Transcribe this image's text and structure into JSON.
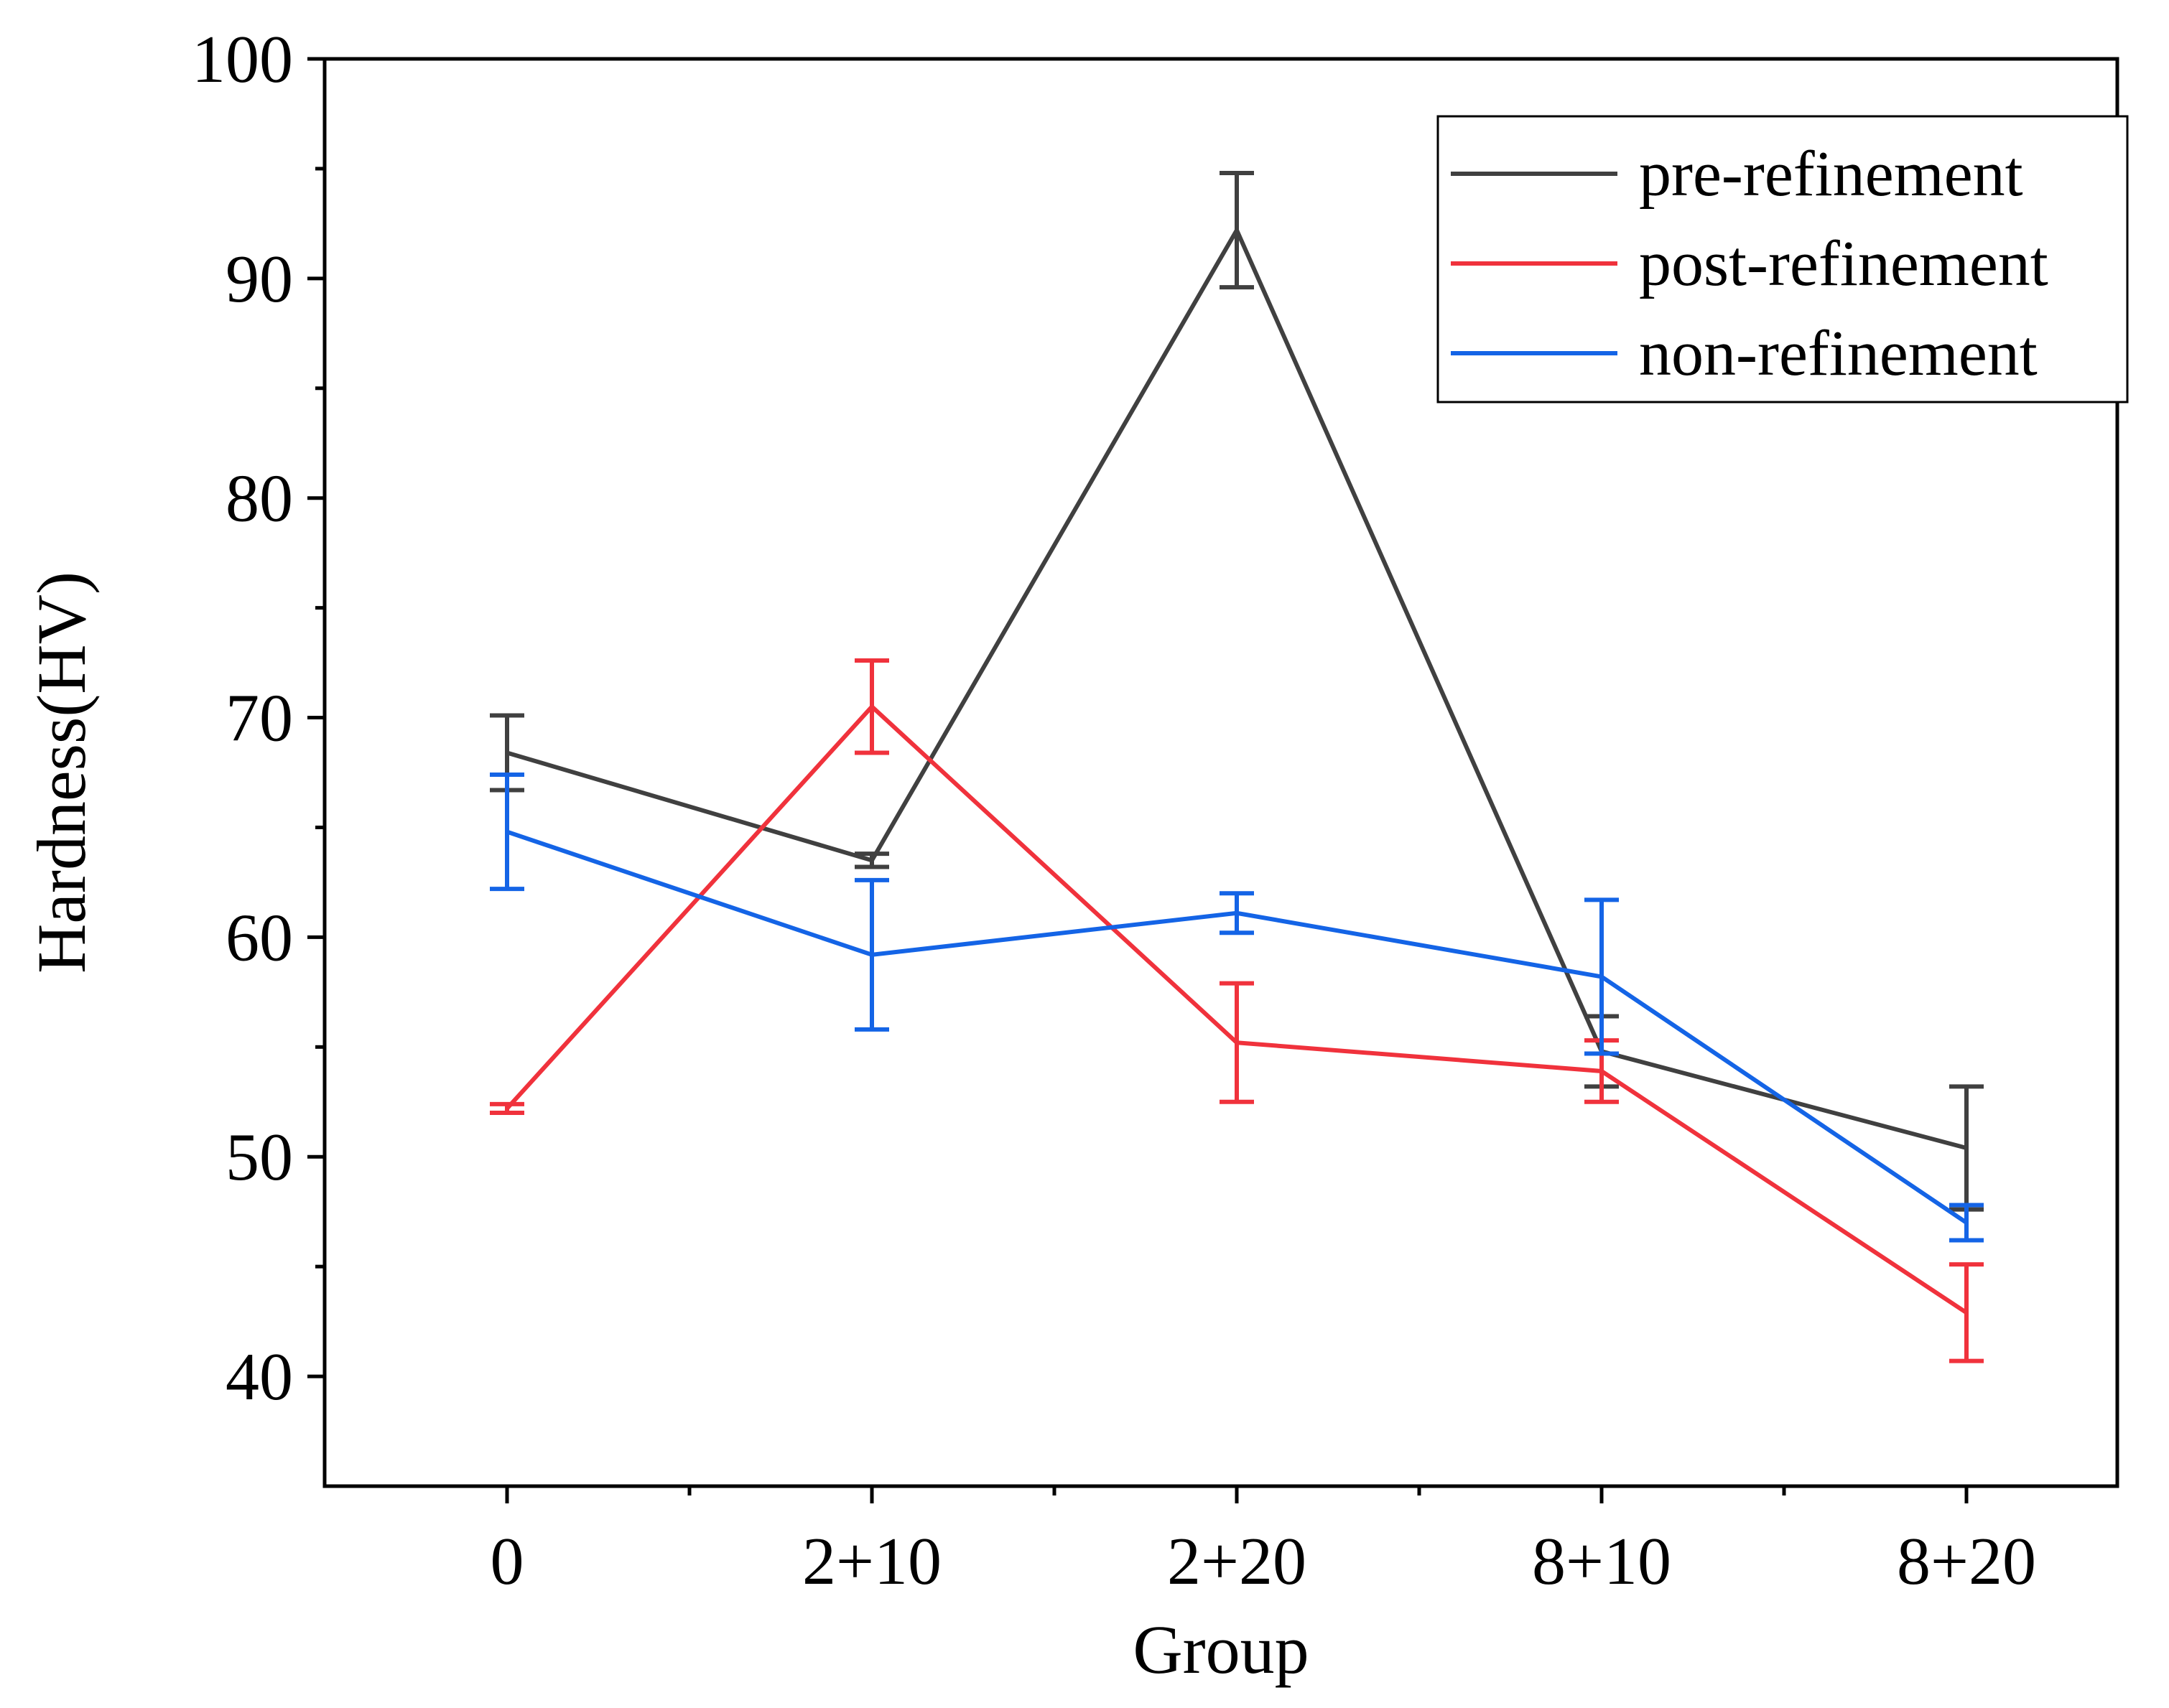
{
  "chart_data": {
    "type": "line",
    "title": "",
    "xlabel": "Group",
    "ylabel": "Hardness(HV)",
    "categories": [
      "0",
      "2+10",
      "2+20",
      "8+10",
      "8+20"
    ],
    "ylim": [
      35,
      100
    ],
    "yticks": [
      40,
      50,
      60,
      70,
      80,
      90,
      100
    ],
    "legend_position": "top-right",
    "series": [
      {
        "name": "pre-refinement",
        "color": "#404040",
        "values": [
          68.4,
          63.5,
          92.2,
          54.8,
          50.4
        ],
        "errors": [
          1.7,
          0.3,
          2.6,
          1.6,
          2.8
        ]
      },
      {
        "name": "post-refinement",
        "color": "#f0323c",
        "values": [
          52.2,
          70.5,
          55.2,
          53.9,
          42.9
        ],
        "errors": [
          0.2,
          2.1,
          2.7,
          1.4,
          2.2
        ]
      },
      {
        "name": "non-refinement",
        "color": "#1464e6",
        "values": [
          64.8,
          59.2,
          61.1,
          58.2,
          47.0
        ],
        "errors": [
          2.6,
          3.4,
          0.9,
          3.5,
          0.8
        ]
      }
    ]
  }
}
